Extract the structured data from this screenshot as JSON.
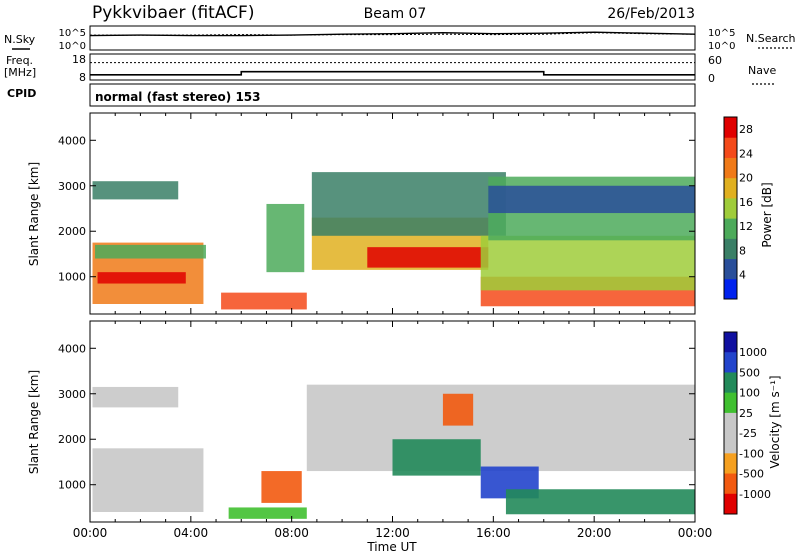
{
  "header": {
    "station": "Pykkvibaer (fitACF)",
    "beam": "Beam 07",
    "date": "26/Feb/2013"
  },
  "noise_panel": {
    "left_label": "N.Sky",
    "left_ticks": [
      "10^5",
      "10^0"
    ],
    "right_ticks": [
      "10^5",
      "10^0"
    ],
    "right_label": "N.Search"
  },
  "freq_panel": {
    "label_line1": "Freq.",
    "label_line2": "[MHz]",
    "left_ticks": [
      "18",
      "8"
    ],
    "right_ticks": [
      "60",
      "0"
    ],
    "right_label": "Nave"
  },
  "cpid_panel": {
    "label": "CPID",
    "text": "normal (fast stereo) 153"
  },
  "colors": {
    "power": [
      "#0022ee",
      "#2a4f9a",
      "#3a7f66",
      "#4caa5a",
      "#9fcc3a",
      "#e0b020",
      "#f07a18",
      "#f44a1a",
      "#e00000"
    ],
    "velocity": [
      "#e00000",
      "#f25a10",
      "#f5a020",
      "#c8c8c8",
      "#c8c8c8",
      "#40c030",
      "#228a5a",
      "#2244cc",
      "#1010a0"
    ],
    "ground_scatter": "#c8c8c8"
  },
  "chart_data": [
    {
      "type": "line",
      "title": "N.Sky / N.Search",
      "x": [
        0,
        2,
        4,
        6,
        8,
        10,
        12,
        14,
        16,
        18,
        20,
        22,
        24
      ],
      "series": [
        {
          "name": "N.Sky",
          "values": [
            3.0,
            3.1,
            3.0,
            3.0,
            3.1,
            3.3,
            3.4,
            3.6,
            3.4,
            3.5,
            3.7,
            3.5,
            3.3
          ]
        },
        {
          "name": "N.Search",
          "values": [
            3.1,
            3.1,
            3.1,
            3.2,
            3.1,
            3.2,
            3.2,
            3.3,
            3.2,
            3.3,
            3.6,
            3.4,
            3.3
          ]
        }
      ],
      "ylim": [
        0,
        5
      ]
    },
    {
      "type": "line",
      "title": "Freq. / Nave",
      "x": [
        0,
        6,
        6,
        18,
        18,
        24
      ],
      "series": [
        {
          "name": "Freq.",
          "values": [
            10,
            10,
            11.2,
            11.2,
            10,
            10
          ]
        },
        {
          "name": "Nave",
          "values": [
            40,
            40,
            40,
            40,
            40,
            40
          ]
        }
      ],
      "ylim": [
        8,
        18
      ]
    },
    {
      "type": "heatmap",
      "xlabel": "Time UT",
      "ylabel": "Slant Range [km]",
      "xlim": [
        0,
        24
      ],
      "ylim": [
        180,
        4600
      ],
      "xticks": [
        "00:00",
        "04:00",
        "08:00",
        "12:00",
        "16:00",
        "20:00",
        "00:00"
      ],
      "yticks": [
        1000,
        2000,
        3000,
        4000
      ],
      "colorbar": {
        "label": "Power [dB]",
        "ticks": [
          "4",
          "8",
          "12",
          "16",
          "20",
          "24",
          "28"
        ],
        "range": [
          0,
          30
        ]
      },
      "regions": [
        {
          "t0": 0.1,
          "t1": 4.5,
          "r0": 400,
          "r1": 1750,
          "level": 20
        },
        {
          "t0": 0.3,
          "t1": 3.8,
          "r0": 850,
          "r1": 1100,
          "level": 27
        },
        {
          "t0": 0.2,
          "t1": 4.6,
          "r0": 1400,
          "r1": 1700,
          "level": 11
        },
        {
          "t0": 0.1,
          "t1": 3.5,
          "r0": 2700,
          "r1": 3100,
          "level": 8
        },
        {
          "t0": 5.2,
          "t1": 8.6,
          "r0": 280,
          "r1": 650,
          "level": 24
        },
        {
          "t0": 7.0,
          "t1": 8.5,
          "r0": 1100,
          "r1": 2600,
          "level": 10
        },
        {
          "t0": 8.8,
          "t1": 15.8,
          "r0": 1150,
          "r1": 2300,
          "level": 18
        },
        {
          "t0": 11.0,
          "t1": 15.8,
          "r0": 1200,
          "r1": 1650,
          "level": 27
        },
        {
          "t0": 8.8,
          "t1": 16.5,
          "r0": 1900,
          "r1": 3300,
          "level": 9
        },
        {
          "t0": 15.5,
          "t1": 24.0,
          "r0": 350,
          "r1": 1000,
          "level": 25
        },
        {
          "t0": 15.5,
          "t1": 24.0,
          "r0": 700,
          "r1": 1900,
          "level": 14
        },
        {
          "t0": 15.8,
          "t1": 24.0,
          "r0": 1800,
          "r1": 3200,
          "level": 10
        },
        {
          "t0": 15.8,
          "t1": 24.0,
          "r0": 2400,
          "r1": 3000,
          "level": 6
        }
      ]
    },
    {
      "type": "heatmap",
      "xlabel": "Time UT",
      "ylabel": "Slant Range [km]",
      "xlim": [
        0,
        24
      ],
      "ylim": [
        180,
        4600
      ],
      "xticks": [
        "00:00",
        "04:00",
        "08:00",
        "12:00",
        "16:00",
        "20:00",
        "00:00"
      ],
      "yticks": [
        1000,
        2000,
        3000,
        4000
      ],
      "colorbar": {
        "label": "Velocity [m s⁻¹]",
        "ticks": [
          "1000",
          "500",
          "100",
          "25",
          "-25",
          "-100",
          "-500",
          "-1000"
        ]
      },
      "regions": [
        {
          "t0": 0.1,
          "t1": 4.5,
          "r0": 400,
          "r1": 1800,
          "kind": "ground"
        },
        {
          "t0": 0.1,
          "t1": 3.5,
          "r0": 2700,
          "r1": 3150,
          "kind": "ground"
        },
        {
          "t0": 8.6,
          "t1": 24.0,
          "r0": 1300,
          "r1": 3200,
          "kind": "ground"
        },
        {
          "t0": 6.8,
          "t1": 8.4,
          "r0": 600,
          "r1": 1300,
          "velocity": -300
        },
        {
          "t0": 5.5,
          "t1": 8.6,
          "r0": 250,
          "r1": 500,
          "velocity": 40
        },
        {
          "t0": 12.0,
          "t1": 15.5,
          "r0": 1200,
          "r1": 2000,
          "velocity": 400
        },
        {
          "t0": 14.0,
          "t1": 15.2,
          "r0": 2300,
          "r1": 3000,
          "velocity": -400
        },
        {
          "t0": 15.5,
          "t1": 17.8,
          "r0": 700,
          "r1": 1400,
          "velocity": 800
        },
        {
          "t0": 16.5,
          "t1": 24.0,
          "r0": 350,
          "r1": 900,
          "velocity": 150
        }
      ]
    }
  ]
}
